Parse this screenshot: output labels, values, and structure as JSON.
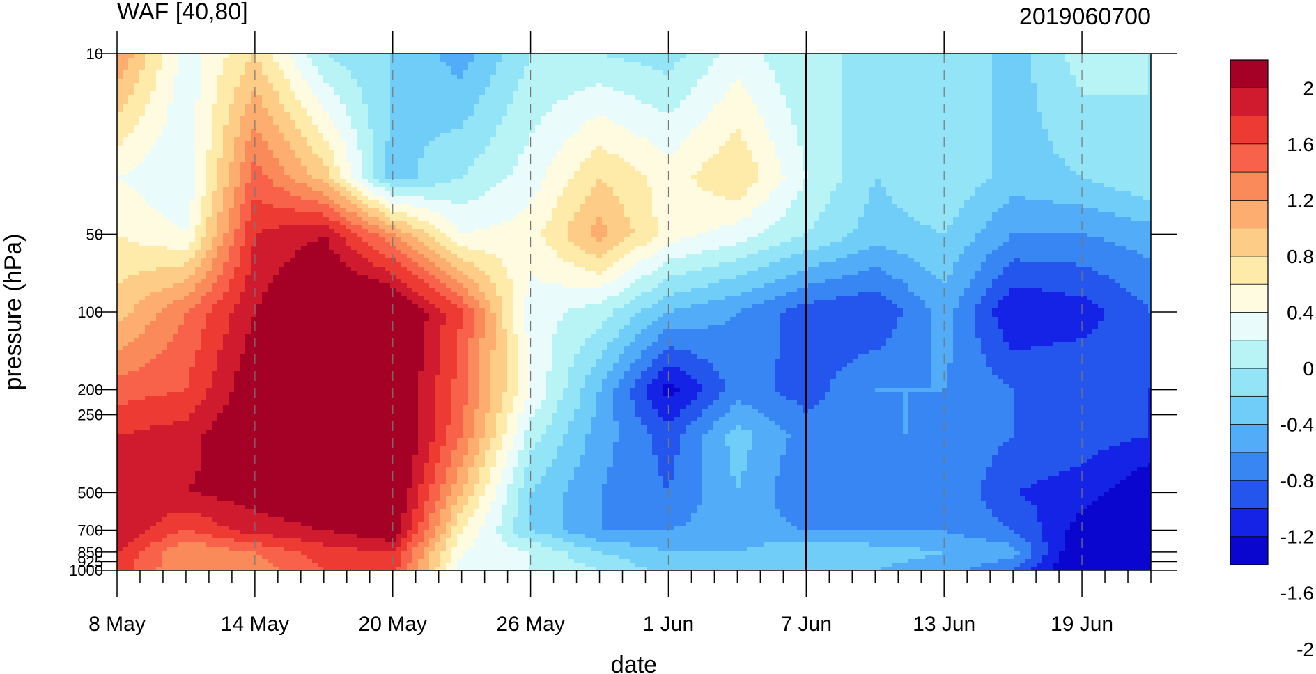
{
  "chart_data": {
    "type": "heatmap",
    "subtype": "filled-contour time-pressure section",
    "title_left": "WAF [40,80]",
    "title_right": "2019060700",
    "xlabel": "date",
    "ylabel": "pressure (hPa)",
    "x_range": [
      "2019-05-08",
      "2019-06-23"
    ],
    "x_ticks": [
      "8 May",
      "14 May",
      "20 May",
      "26 May",
      "1 Jun",
      "7 Jun",
      "13 Jun",
      "19 Jun"
    ],
    "y_scale": "log",
    "y_reversed": true,
    "y_range": [
      1000,
      10
    ],
    "y_ticks": [
      "10",
      "50",
      "100",
      "200",
      "250",
      "500",
      "700",
      "850",
      "925",
      "1000"
    ],
    "marker_date": "7 Jun",
    "colorbar": {
      "labels": [
        "2",
        "1.6",
        "1.2",
        "0.8",
        "0.4",
        "0",
        "-0.4",
        "-0.8",
        "-1.2",
        "-1.6",
        "-2"
      ],
      "colors": [
        "#a50026",
        "#d01a2e",
        "#ed3b33",
        "#f8624a",
        "#fb8a5a",
        "#fcad6f",
        "#fdcd87",
        "#feeaa9",
        "#fefbe1",
        "#e9fbfb",
        "#b8f3f6",
        "#93e4f7",
        "#70cdf8",
        "#52acf7",
        "#3886f4",
        "#2456ee",
        "#1523e6",
        "#0a06d0"
      ]
    },
    "grid": "dashed vertical lines at date ticks",
    "legend": "colorbar right",
    "field_days": [
      0,
      3,
      6,
      9,
      12,
      15,
      18,
      21,
      24,
      27,
      30,
      33,
      36,
      39,
      42,
      45
    ],
    "field_levels": [
      10,
      30,
      50,
      100,
      200,
      300,
      500,
      700,
      850,
      1000
    ],
    "values": [
      [
        1.2,
        0.3,
        0.8,
        0.0,
        -0.2,
        -0.5,
        0.0,
        0.0,
        -0.1,
        0.3,
        0.0,
        0.0,
        0.0,
        -0.3,
        0.1,
        0.0
      ],
      [
        0.4,
        0.2,
        1.5,
        0.9,
        -0.3,
        0.0,
        0.3,
        0.8,
        0.5,
        0.8,
        0.2,
        -0.2,
        0.0,
        -0.3,
        -0.2,
        0.0
      ],
      [
        0.6,
        0.4,
        1.8,
        2.0,
        1.2,
        0.4,
        0.5,
        1.1,
        0.5,
        0.3,
        0.0,
        -0.3,
        -0.2,
        -0.6,
        -0.6,
        -0.5
      ],
      [
        0.9,
        1.4,
        2.0,
        2.4,
        2.4,
        1.6,
        0.3,
        0.1,
        -0.4,
        -0.6,
        -0.9,
        -1.0,
        -0.5,
        -1.2,
        -1.1,
        -0.8
      ],
      [
        1.5,
        1.6,
        2.2,
        2.4,
        2.3,
        1.5,
        0.4,
        -0.4,
        -1.3,
        -0.7,
        -0.9,
        -0.6,
        -0.6,
        -0.8,
        -0.8,
        -1.0
      ],
      [
        1.8,
        1.9,
        2.3,
        2.3,
        2.4,
        1.4,
        0.1,
        -0.5,
        -0.9,
        -0.3,
        -0.7,
        -0.6,
        -0.6,
        -0.8,
        -0.9,
        -1.0
      ],
      [
        1.8,
        2.0,
        2.1,
        2.2,
        2.3,
        1.0,
        -0.2,
        -0.6,
        -0.8,
        -0.4,
        -0.8,
        -0.7,
        -0.6,
        -1.0,
        -1.1,
        -1.4
      ],
      [
        2.0,
        1.6,
        1.9,
        2.0,
        2.2,
        0.6,
        -0.2,
        -0.6,
        -0.6,
        -0.5,
        -0.6,
        -0.6,
        -0.6,
        -0.8,
        -1.3,
        -1.8
      ],
      [
        1.8,
        1.2,
        1.4,
        1.7,
        1.8,
        0.4,
        0.2,
        -0.2,
        -0.4,
        -0.4,
        -0.2,
        -0.3,
        -0.4,
        -0.5,
        -1.5,
        -2.0
      ],
      [
        1.7,
        1.2,
        1.3,
        1.6,
        1.7,
        0.3,
        0.2,
        0.0,
        -0.3,
        -0.4,
        -0.4,
        -0.4,
        -0.5,
        -0.8,
        -1.5,
        -2.0
      ]
    ]
  }
}
